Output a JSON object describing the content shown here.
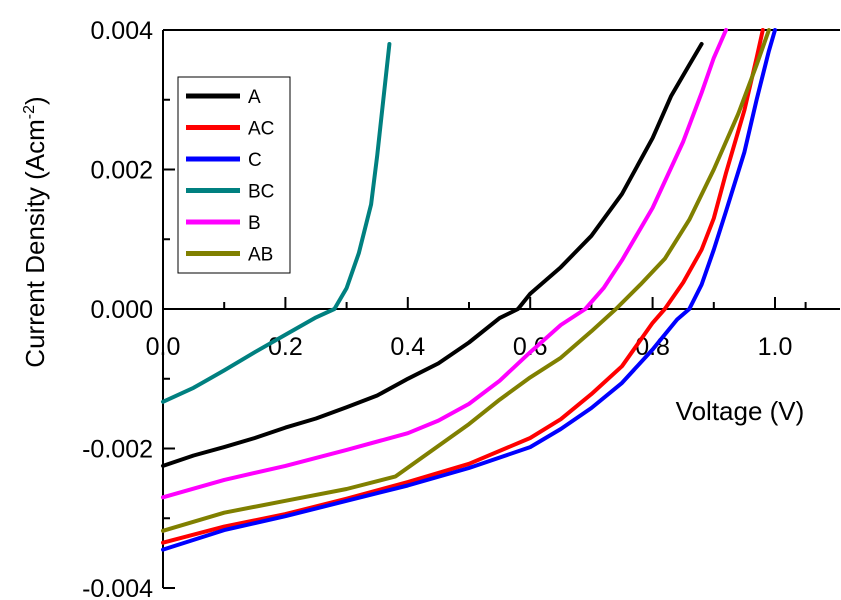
{
  "chart_data": {
    "type": "line",
    "title": "",
    "xlabel": "Voltage (V)",
    "ylabel_main": "Current Density (Acm",
    "ylabel_sup": "-2",
    "ylabel_close": ")",
    "xlim": [
      0.0,
      1.1
    ],
    "ylim": [
      -0.004,
      0.004
    ],
    "x_ticks": [
      0.0,
      0.2,
      0.4,
      0.6,
      0.8,
      1.0
    ],
    "x_tick_labels": [
      "0.0",
      "0.2",
      "0.4",
      "0.6",
      "0.8",
      "1.0"
    ],
    "y_ticks": [
      -0.004,
      -0.002,
      0.0,
      0.002,
      0.004
    ],
    "y_tick_labels": [
      "-0.004",
      "-0.002",
      "0.000",
      "0.002",
      "0.004"
    ],
    "grid": false,
    "legend_position": "top-left",
    "series": [
      {
        "name": "A",
        "color": "#000000",
        "x": [
          0.0,
          0.05,
          0.1,
          0.15,
          0.2,
          0.25,
          0.3,
          0.35,
          0.4,
          0.45,
          0.5,
          0.55,
          0.58,
          0.6,
          0.65,
          0.7,
          0.75,
          0.8,
          0.83,
          0.86,
          0.88
        ],
        "y": [
          -0.00225,
          -0.0021,
          -0.00198,
          -0.00185,
          -0.0017,
          -0.00157,
          -0.00141,
          -0.00124,
          -0.001,
          -0.00078,
          -0.00048,
          -0.00013,
          0.0,
          0.00022,
          0.0006,
          0.00105,
          0.00165,
          0.00245,
          0.00305,
          0.0035,
          0.0038
        ]
      },
      {
        "name": "AC",
        "color": "#ff0000",
        "x": [
          0.0,
          0.1,
          0.2,
          0.3,
          0.4,
          0.5,
          0.6,
          0.65,
          0.7,
          0.75,
          0.8,
          0.82,
          0.85,
          0.88,
          0.9,
          0.92,
          0.95,
          0.97,
          0.98
        ],
        "y": [
          -0.00335,
          -0.00312,
          -0.00294,
          -0.00272,
          -0.00248,
          -0.00222,
          -0.00185,
          -0.00158,
          -0.00122,
          -0.00082,
          -0.0002,
          0.0,
          0.00038,
          0.00085,
          0.0013,
          0.00195,
          0.00285,
          0.0036,
          0.004
        ]
      },
      {
        "name": "C",
        "color": "#0000ff",
        "x": [
          0.0,
          0.1,
          0.2,
          0.3,
          0.4,
          0.5,
          0.6,
          0.65,
          0.7,
          0.75,
          0.8,
          0.84,
          0.86,
          0.88,
          0.9,
          0.92,
          0.95,
          0.97,
          0.99,
          1.0
        ],
        "y": [
          -0.00345,
          -0.00317,
          -0.00297,
          -0.00275,
          -0.00253,
          -0.00228,
          -0.00198,
          -0.00172,
          -0.00142,
          -0.00106,
          -0.00058,
          -0.00015,
          0.0,
          0.00035,
          0.00085,
          0.0014,
          0.00225,
          0.003,
          0.0037,
          0.004
        ]
      },
      {
        "name": "BC",
        "color": "#008080",
        "x": [
          0.0,
          0.05,
          0.1,
          0.15,
          0.2,
          0.25,
          0.28,
          0.3,
          0.32,
          0.34,
          0.35,
          0.36,
          0.37
        ],
        "y": [
          -0.00133,
          -0.00113,
          -0.00088,
          -0.00062,
          -0.00037,
          -0.00012,
          0.0,
          0.0003,
          0.0008,
          0.0015,
          0.0022,
          0.003,
          0.0038
        ]
      },
      {
        "name": "B",
        "color": "#ff00ff",
        "x": [
          0.0,
          0.1,
          0.2,
          0.3,
          0.4,
          0.45,
          0.5,
          0.55,
          0.6,
          0.65,
          0.69,
          0.72,
          0.75,
          0.8,
          0.85,
          0.88,
          0.9,
          0.92
        ],
        "y": [
          -0.0027,
          -0.00245,
          -0.00225,
          -0.00202,
          -0.00178,
          -0.0016,
          -0.00136,
          -0.00103,
          -0.00062,
          -0.00023,
          0.0,
          0.0003,
          0.0007,
          0.00145,
          0.0024,
          0.0031,
          0.0036,
          0.004
        ]
      },
      {
        "name": "AB",
        "color": "#808000",
        "x": [
          0.0,
          0.1,
          0.2,
          0.3,
          0.38,
          0.42,
          0.5,
          0.55,
          0.6,
          0.65,
          0.7,
          0.74,
          0.78,
          0.82,
          0.86,
          0.9,
          0.94,
          0.97,
          0.99
        ],
        "y": [
          -0.00318,
          -0.00292,
          -0.00275,
          -0.00258,
          -0.0024,
          -0.00215,
          -0.00165,
          -0.0013,
          -0.00098,
          -0.0007,
          -0.00032,
          0.0,
          0.00035,
          0.00072,
          0.00128,
          0.002,
          0.0028,
          0.0035,
          0.004
        ]
      }
    ]
  }
}
